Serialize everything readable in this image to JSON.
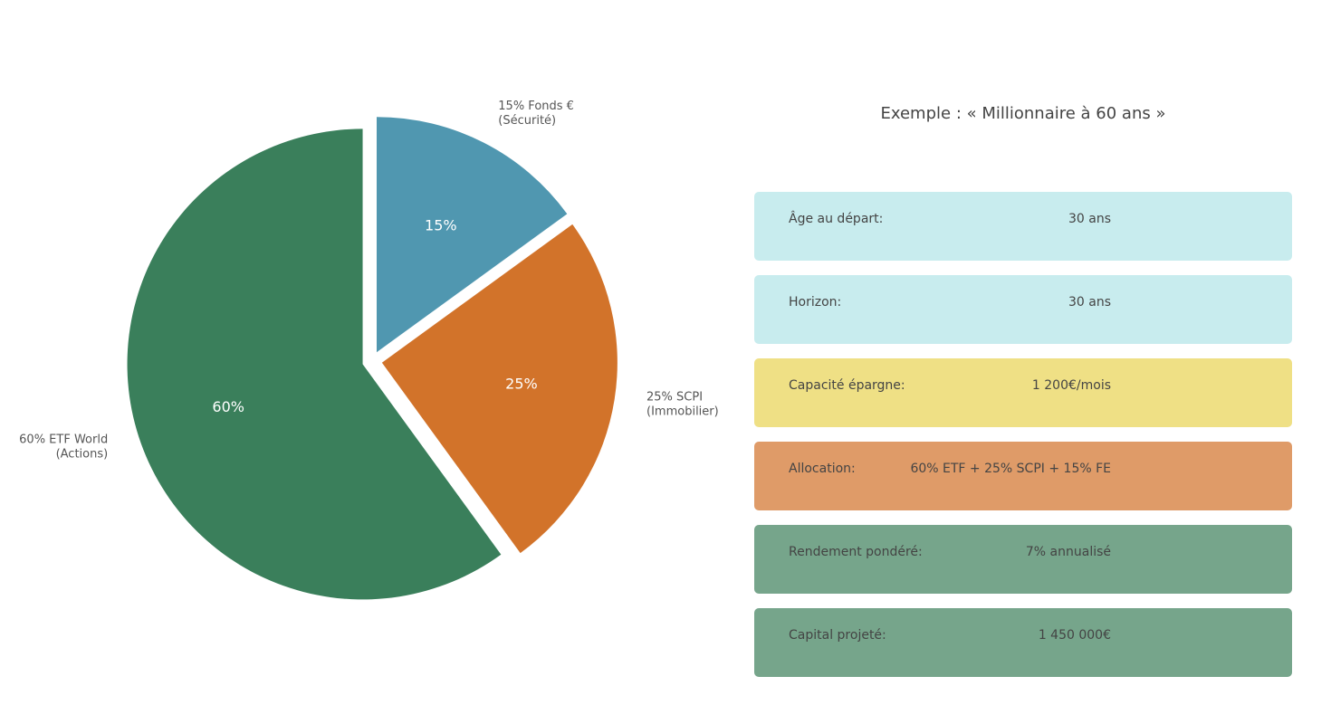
{
  "chart_data": {
    "type": "pie",
    "categories": [
      [
        "15% Fonds €",
        "(Sécurité)"
      ],
      [
        "25% SCPI",
        "(Immobilier)"
      ],
      [
        "60% ETF World",
        "(Actions)"
      ]
    ],
    "values": [
      15,
      25,
      60
    ],
    "value_labels": [
      "15%",
      "25%",
      "60%"
    ],
    "colors": [
      "#5097b0",
      "#d2732a",
      "#3a7f5b"
    ]
  },
  "panel": {
    "title": "Exemple : « Millionnaire à 60 ans »",
    "rows": [
      {
        "label": "Âge au départ:",
        "value": "30 ans",
        "color": "#c8ecee"
      },
      {
        "label": "Horizon:",
        "value": "30 ans",
        "color": "#c8ecee"
      },
      {
        "label": "Capacité épargne:",
        "value": "1 200€/mois",
        "color": "#efe085"
      },
      {
        "label": "Allocation:",
        "value": "60% ETF + 25% SCPI + 15% FE",
        "color": "#df9b68"
      },
      {
        "label": "Rendement pondéré:",
        "value": "7% annualisé",
        "color": "#76a58b"
      },
      {
        "label": "Capital projeté:",
        "value": "1 450 000€",
        "color": "#76a58b"
      }
    ]
  }
}
